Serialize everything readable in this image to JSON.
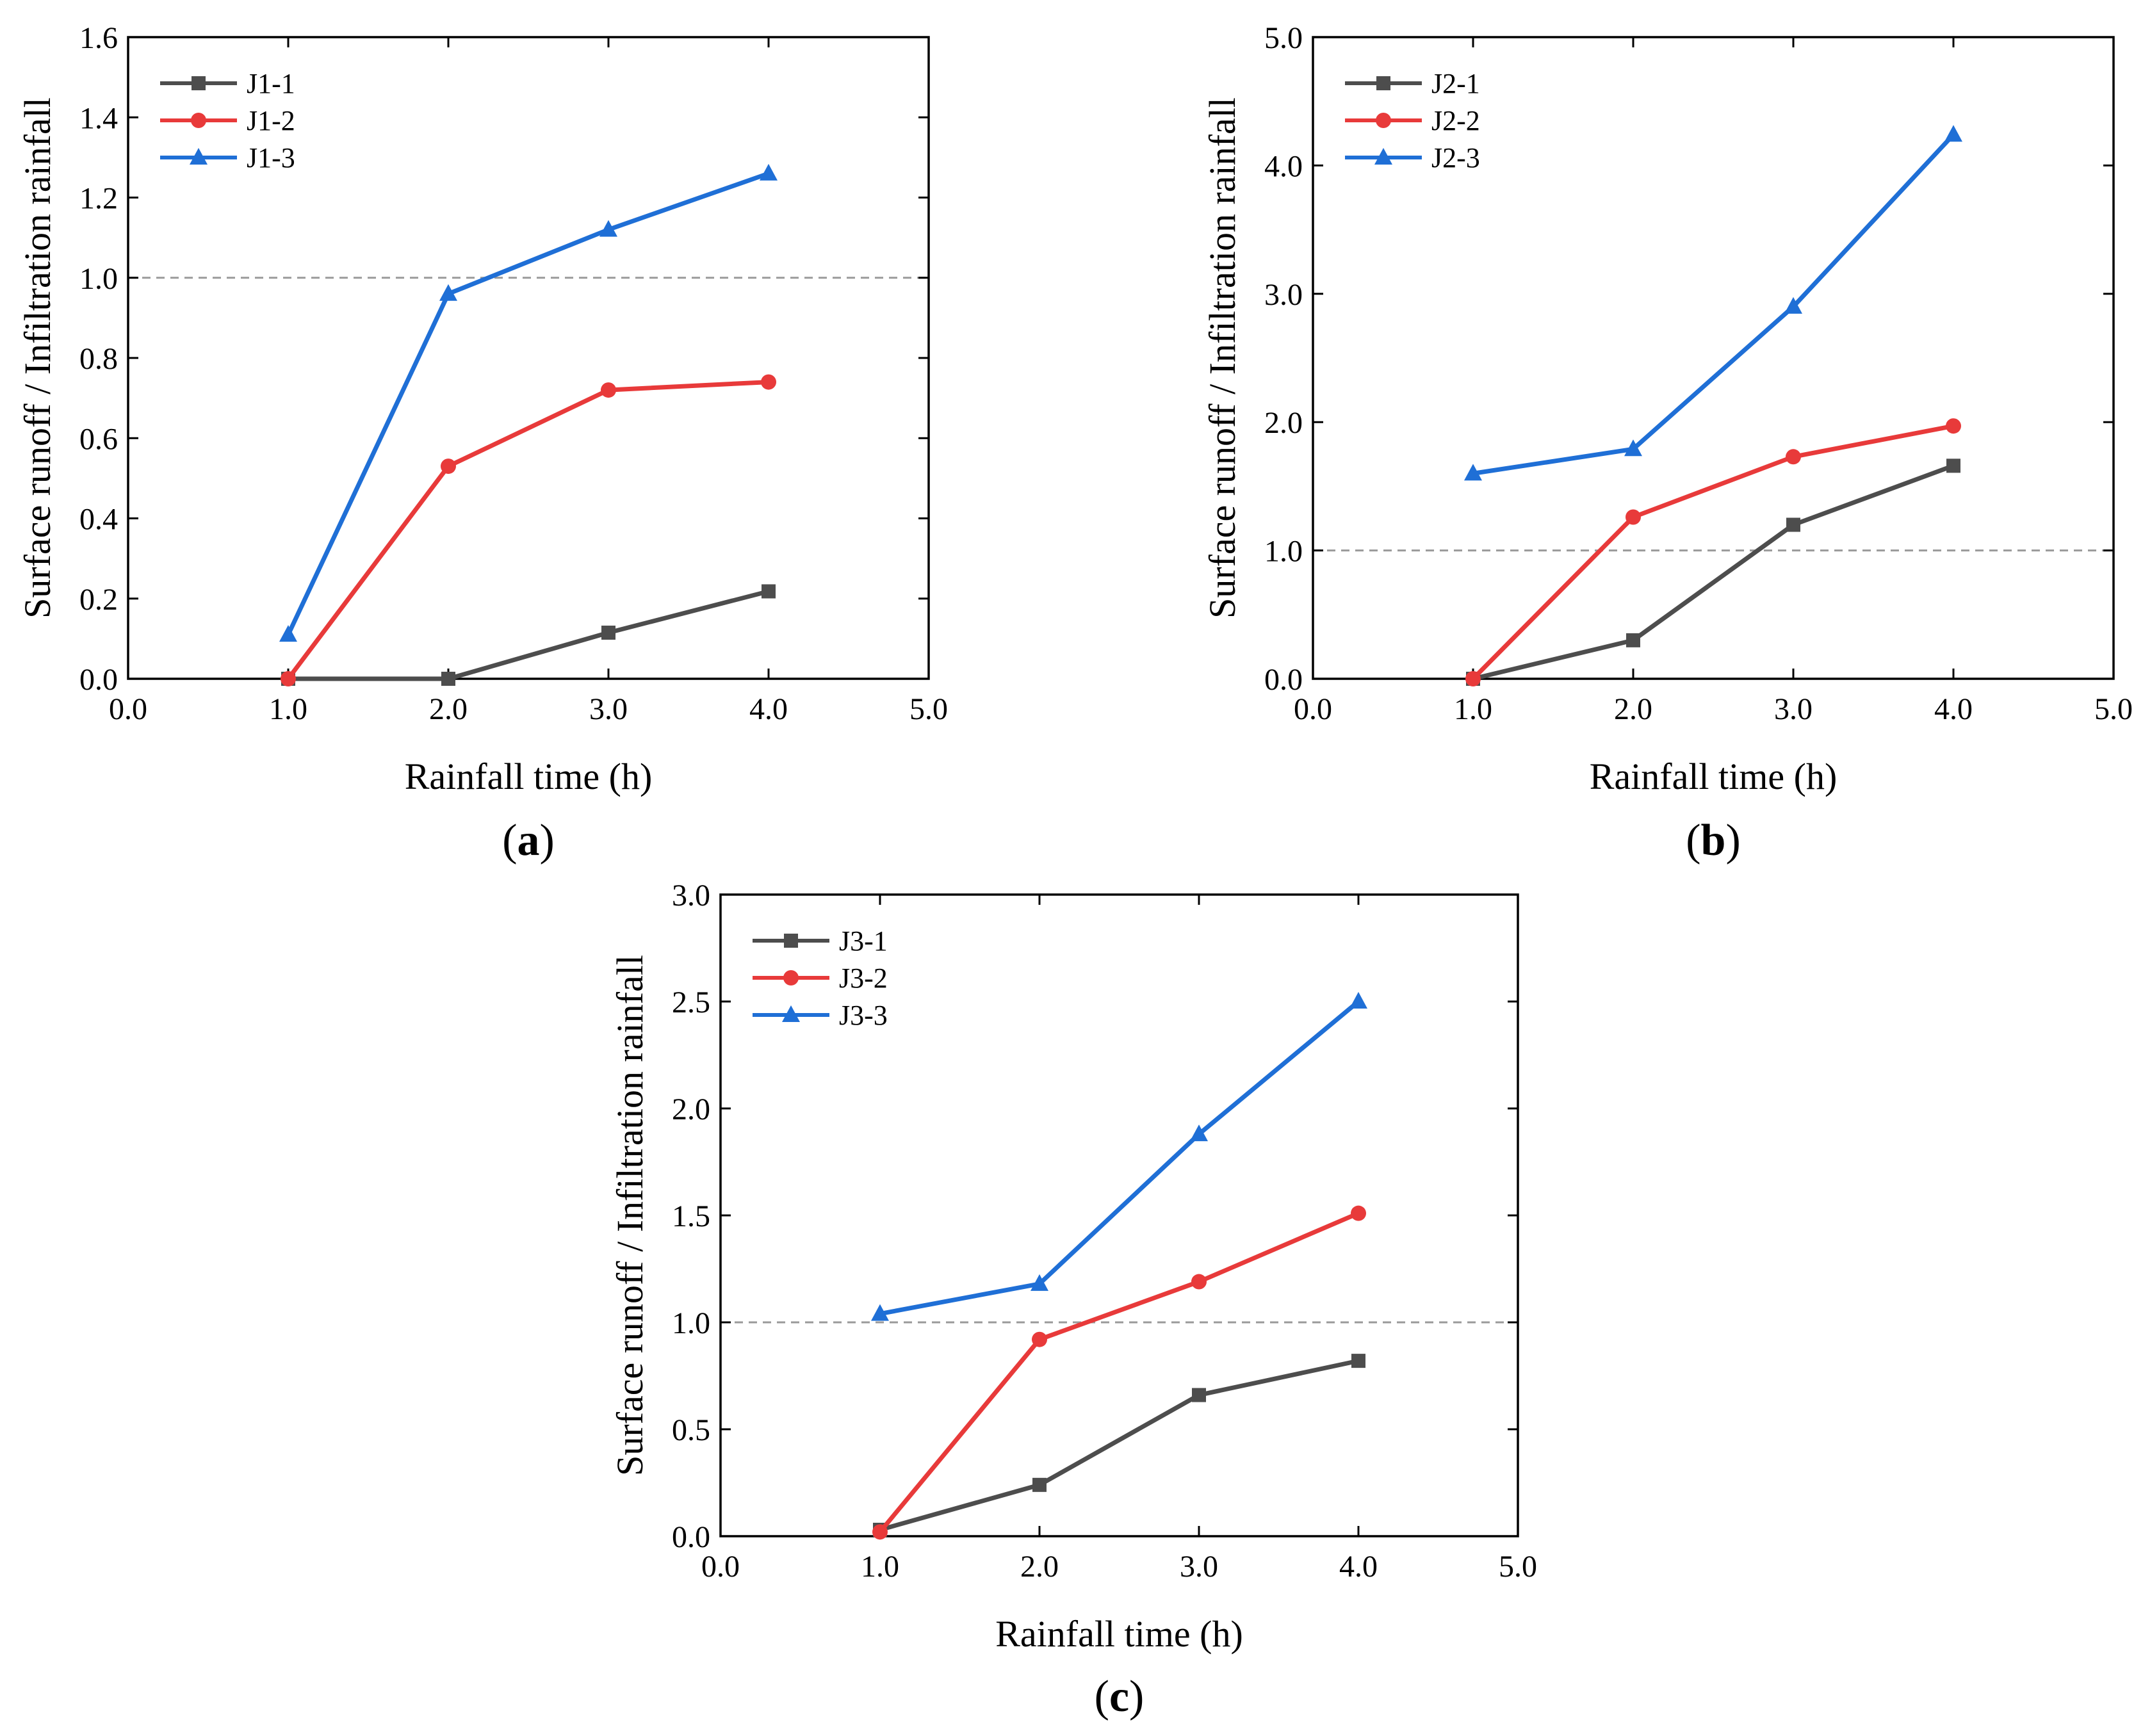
{
  "figure": {
    "ylabel": "Surface runoff / Infiltration  rainfall",
    "xlabel": "Rainfall time (h)"
  },
  "chart_data": [
    {
      "type": "line",
      "panel_label": "(a)",
      "panel_letter": "a",
      "xlabel": "Rainfall time (h)",
      "ylabel": "Surface runoff / Infiltration  rainfall",
      "xlim": [
        0,
        5
      ],
      "ylim": [
        0,
        1.6
      ],
      "xticks": [
        0,
        1,
        2,
        3,
        4,
        5
      ],
      "xtick_labels": [
        "0.0",
        "1.0",
        "2.0",
        "3.0",
        "4.0",
        "5.0"
      ],
      "yticks": [
        0,
        0.2,
        0.4,
        0.6,
        0.8,
        1.0,
        1.2,
        1.4,
        1.6
      ],
      "ytick_labels": [
        "0.0",
        "0.2",
        "0.4",
        "0.6",
        "0.8",
        "1.0",
        "1.2",
        "1.4",
        "1.6"
      ],
      "reference_line": 1.0,
      "legend_position": "top-left",
      "series": [
        {
          "name": "J1-1",
          "color": "#4d4d4d",
          "marker": "square",
          "x": [
            1,
            2,
            3,
            4
          ],
          "values": [
            0.0,
            0.0,
            0.115,
            0.218
          ]
        },
        {
          "name": "J1-2",
          "color": "#e83a3a",
          "marker": "circle",
          "x": [
            1,
            2,
            3,
            4
          ],
          "values": [
            0.0,
            0.53,
            0.72,
            0.74
          ]
        },
        {
          "name": "J1-3",
          "color": "#1f6fd6",
          "marker": "triangle",
          "x": [
            1,
            2,
            3,
            4
          ],
          "values": [
            0.11,
            0.96,
            1.12,
            1.26
          ]
        }
      ]
    },
    {
      "type": "line",
      "panel_label": "(b)",
      "panel_letter": "b",
      "xlabel": "Rainfall time (h)",
      "ylabel": "Surface runoff / Infiltration  rainfall",
      "xlim": [
        0,
        5
      ],
      "ylim": [
        0,
        5
      ],
      "xticks": [
        0,
        1,
        2,
        3,
        4,
        5
      ],
      "xtick_labels": [
        "0.0",
        "1.0",
        "2.0",
        "3.0",
        "4.0",
        "5.0"
      ],
      "yticks": [
        0,
        1,
        2,
        3,
        4,
        5
      ],
      "ytick_labels": [
        "0.0",
        "1.0",
        "2.0",
        "3.0",
        "4.0",
        "5.0"
      ],
      "reference_line": 1.0,
      "legend_position": "top-left",
      "series": [
        {
          "name": "J2-1",
          "color": "#4d4d4d",
          "marker": "square",
          "x": [
            1,
            2,
            3,
            4
          ],
          "values": [
            0.0,
            0.3,
            1.2,
            1.66
          ]
        },
        {
          "name": "J2-2",
          "color": "#e83a3a",
          "marker": "circle",
          "x": [
            1,
            2,
            3,
            4
          ],
          "values": [
            0.0,
            1.26,
            1.73,
            1.97
          ]
        },
        {
          "name": "J2-3",
          "color": "#1f6fd6",
          "marker": "triangle",
          "x": [
            1,
            2,
            3,
            4
          ],
          "values": [
            1.6,
            1.79,
            2.9,
            4.24
          ]
        }
      ]
    },
    {
      "type": "line",
      "panel_label": "(c)",
      "panel_letter": "c",
      "xlabel": "Rainfall time (h)",
      "ylabel": "Surface runoff / Infiltration  rainfall",
      "xlim": [
        0,
        5
      ],
      "ylim": [
        0,
        3
      ],
      "xticks": [
        0,
        1,
        2,
        3,
        4,
        5
      ],
      "xtick_labels": [
        "0.0",
        "1.0",
        "2.0",
        "3.0",
        "4.0",
        "5.0"
      ],
      "yticks": [
        0,
        0.5,
        1.0,
        1.5,
        2.0,
        2.5,
        3.0
      ],
      "ytick_labels": [
        "0.0",
        "0.5",
        "1.0",
        "1.5",
        "2.0",
        "2.5",
        "3.0"
      ],
      "reference_line": 1.0,
      "legend_position": "top-left",
      "series": [
        {
          "name": "J3-1",
          "color": "#4d4d4d",
          "marker": "square",
          "x": [
            1,
            2,
            3,
            4
          ],
          "values": [
            0.03,
            0.24,
            0.66,
            0.82
          ]
        },
        {
          "name": "J3-2",
          "color": "#e83a3a",
          "marker": "circle",
          "x": [
            1,
            2,
            3,
            4
          ],
          "values": [
            0.02,
            0.92,
            1.19,
            1.51
          ]
        },
        {
          "name": "J3-3",
          "color": "#1f6fd6",
          "marker": "triangle",
          "x": [
            1,
            2,
            3,
            4
          ],
          "values": [
            1.04,
            1.18,
            1.88,
            2.5
          ]
        }
      ]
    }
  ]
}
